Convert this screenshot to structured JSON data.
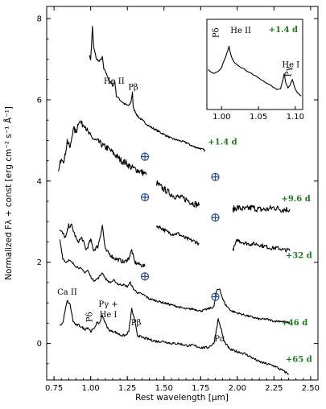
{
  "chart_data": {
    "type": "line",
    "xlabel": "Rest wavelength [μm]",
    "ylabel": "Normalized Fλ + const [erg cm⁻² s⁻¹ Å⁻¹]",
    "xlim": [
      0.7,
      2.55
    ],
    "ylim": [
      -0.9,
      8.3
    ],
    "xticks": [
      "0.75",
      "1.00",
      "1.25",
      "1.50",
      "1.75",
      "2.00",
      "2.25",
      "2.50"
    ],
    "yticks": [
      "0",
      "2",
      "4",
      "6",
      "8"
    ],
    "series_color": "#000000",
    "phase_color": "#1f7a1f",
    "telluric_color": "#2a4d8f",
    "series": [
      {
        "name": "+1.4 d",
        "label_x": 1.8,
        "label_y": 4.9,
        "segments": [
          [
            [
              0.99,
              7.1
            ],
            [
              1.0,
              7.0
            ],
            [
              1.005,
              7.3
            ],
            [
              1.012,
              7.8
            ],
            [
              1.02,
              7.3
            ],
            [
              1.04,
              7.0
            ],
            [
              1.06,
              6.95
            ],
            [
              1.08,
              7.05
            ],
            [
              1.09,
              6.75
            ],
            [
              1.1,
              6.7
            ],
            [
              1.13,
              6.45
            ],
            [
              1.15,
              6.35
            ],
            [
              1.165,
              6.45
            ],
            [
              1.175,
              6.1
            ],
            [
              1.2,
              6.0
            ],
            [
              1.23,
              5.9
            ],
            [
              1.26,
              5.85
            ],
            [
              1.275,
              5.95
            ],
            [
              1.285,
              6.2
            ],
            [
              1.29,
              5.8
            ],
            [
              1.32,
              5.6
            ],
            [
              1.35,
              5.5
            ],
            [
              1.4,
              5.35
            ],
            [
              1.45,
              5.25
            ],
            [
              1.5,
              5.15
            ],
            [
              1.55,
              5.05
            ],
            [
              1.6,
              5.0
            ],
            [
              1.65,
              4.95
            ],
            [
              1.7,
              4.85
            ],
            [
              1.75,
              4.8
            ],
            [
              1.78,
              4.75
            ]
          ]
        ]
      },
      {
        "name": "+9.6 d",
        "label_x": 2.3,
        "label_y": 3.5,
        "segments": [
          [
            [
              0.78,
              4.2
            ],
            [
              0.8,
              4.6
            ],
            [
              0.82,
              4.5
            ],
            [
              0.84,
              5.0
            ],
            [
              0.86,
              4.8
            ],
            [
              0.88,
              5.3
            ],
            [
              0.9,
              5.2
            ],
            [
              0.92,
              5.5
            ],
            [
              0.94,
              5.4
            ],
            [
              0.96,
              5.4
            ],
            [
              0.98,
              5.2
            ],
            [
              1.0,
              5.1
            ],
            [
              1.03,
              5.0
            ],
            [
              1.06,
              4.95
            ],
            [
              1.09,
              4.85
            ],
            [
              1.12,
              4.8
            ],
            [
              1.15,
              4.7
            ],
            [
              1.18,
              4.6
            ],
            [
              1.21,
              4.5
            ],
            [
              1.24,
              4.45
            ],
            [
              1.27,
              4.35
            ],
            [
              1.3,
              4.3
            ],
            [
              1.33,
              4.25
            ],
            [
              1.36,
              4.2
            ],
            [
              1.38,
              4.15
            ]
          ],
          [
            [
              1.45,
              3.95
            ],
            [
              1.48,
              3.85
            ],
            [
              1.52,
              3.75
            ],
            [
              1.56,
              3.65
            ],
            [
              1.6,
              3.6
            ],
            [
              1.65,
              3.55
            ],
            [
              1.7,
              3.45
            ],
            [
              1.74,
              3.4
            ]
          ],
          [
            [
              1.97,
              3.3
            ],
            [
              2.0,
              3.35
            ],
            [
              2.05,
              3.3
            ],
            [
              2.1,
              3.35
            ],
            [
              2.15,
              3.3
            ],
            [
              2.2,
              3.3
            ],
            [
              2.25,
              3.35
            ],
            [
              2.3,
              3.3
            ],
            [
              2.36,
              3.3
            ]
          ]
        ]
      },
      {
        "name": "+32 d",
        "label_x": 2.33,
        "label_y": 2.1,
        "segments": [
          [
            [
              0.79,
              2.8
            ],
            [
              0.81,
              2.7
            ],
            [
              0.83,
              2.6
            ],
            [
              0.85,
              2.9
            ],
            [
              0.87,
              2.9
            ],
            [
              0.89,
              2.7
            ],
            [
              0.91,
              2.5
            ],
            [
              0.94,
              2.6
            ],
            [
              0.97,
              2.3
            ],
            [
              1.0,
              2.55
            ],
            [
              1.02,
              2.3
            ],
            [
              1.05,
              2.4
            ],
            [
              1.08,
              2.9
            ],
            [
              1.1,
              2.3
            ],
            [
              1.13,
              2.2
            ],
            [
              1.16,
              2.1
            ],
            [
              1.2,
              2.05
            ],
            [
              1.23,
              2.0
            ],
            [
              1.26,
              2.1
            ],
            [
              1.28,
              2.3
            ],
            [
              1.3,
              2.0
            ],
            [
              1.33,
              1.95
            ],
            [
              1.37,
              1.9
            ]
          ],
          [
            [
              1.45,
              2.9
            ],
            [
              1.48,
              2.85
            ],
            [
              1.52,
              2.75
            ],
            [
              1.56,
              2.7
            ],
            [
              1.6,
              2.7
            ],
            [
              1.64,
              2.6
            ],
            [
              1.68,
              2.55
            ],
            [
              1.72,
              2.5
            ],
            [
              1.74,
              2.45
            ]
          ],
          [
            [
              1.97,
              2.3
            ],
            [
              2.0,
              2.55
            ],
            [
              2.03,
              2.5
            ],
            [
              2.08,
              2.45
            ],
            [
              2.13,
              2.45
            ],
            [
              2.18,
              2.4
            ],
            [
              2.23,
              2.35
            ],
            [
              2.28,
              2.35
            ],
            [
              2.32,
              2.3
            ],
            [
              2.36,
              2.3
            ]
          ]
        ]
      },
      {
        "name": "+46 d",
        "label_x": 2.3,
        "label_y": 0.45,
        "segments": [
          [
            [
              0.79,
              2.55
            ],
            [
              0.81,
              2.1
            ],
            [
              0.83,
              2.0
            ],
            [
              0.85,
              2.05
            ],
            [
              0.87,
              2.0
            ],
            [
              0.9,
              1.9
            ],
            [
              0.93,
              1.85
            ],
            [
              0.96,
              1.75
            ],
            [
              0.98,
              1.8
            ],
            [
              1.0,
              1.65
            ],
            [
              1.02,
              1.55
            ],
            [
              1.05,
              1.6
            ],
            [
              1.08,
              1.75
            ],
            [
              1.1,
              1.6
            ],
            [
              1.13,
              1.5
            ],
            [
              1.16,
              1.55
            ],
            [
              1.19,
              1.45
            ],
            [
              1.22,
              1.45
            ],
            [
              1.25,
              1.4
            ],
            [
              1.27,
              1.5
            ],
            [
              1.29,
              1.35
            ],
            [
              1.32,
              1.25
            ],
            [
              1.36,
              1.2
            ],
            [
              1.4,
              1.1
            ],
            [
              1.45,
              1.05
            ],
            [
              1.5,
              1.0
            ],
            [
              1.55,
              0.95
            ],
            [
              1.6,
              0.9
            ],
            [
              1.65,
              0.85
            ],
            [
              1.7,
              0.85
            ],
            [
              1.75,
              0.8
            ],
            [
              1.8,
              0.85
            ],
            [
              1.84,
              0.9
            ],
            [
              1.86,
              1.3
            ],
            [
              1.88,
              1.35
            ],
            [
              1.9,
              1.1
            ],
            [
              1.92,
              0.95
            ],
            [
              1.96,
              0.8
            ],
            [
              2.0,
              0.75
            ],
            [
              2.05,
              0.7
            ],
            [
              2.1,
              0.65
            ],
            [
              2.15,
              0.6
            ],
            [
              2.2,
              0.6
            ],
            [
              2.25,
              0.55
            ],
            [
              2.3,
              0.55
            ],
            [
              2.36,
              0.5
            ]
          ]
        ]
      },
      {
        "name": "+65 d",
        "label_x": 2.33,
        "label_y": -0.45,
        "segments": [
          [
            [
              0.79,
              0.45
            ],
            [
              0.81,
              0.5
            ],
            [
              0.82,
              0.7
            ],
            [
              0.84,
              1.05
            ],
            [
              0.86,
              0.95
            ],
            [
              0.88,
              0.55
            ],
            [
              0.9,
              0.45
            ],
            [
              0.92,
              0.45
            ],
            [
              0.94,
              0.4
            ],
            [
              0.96,
              0.35
            ],
            [
              0.98,
              0.4
            ],
            [
              1.0,
              0.3
            ],
            [
              1.02,
              0.35
            ],
            [
              1.04,
              0.5
            ],
            [
              1.06,
              0.5
            ],
            [
              1.08,
              0.7
            ],
            [
              1.1,
              0.5
            ],
            [
              1.12,
              0.35
            ],
            [
              1.14,
              0.3
            ],
            [
              1.16,
              0.3
            ],
            [
              1.18,
              0.25
            ],
            [
              1.21,
              0.2
            ],
            [
              1.24,
              0.2
            ],
            [
              1.26,
              0.3
            ],
            [
              1.28,
              0.85
            ],
            [
              1.3,
              0.55
            ],
            [
              1.32,
              0.2
            ],
            [
              1.35,
              0.15
            ],
            [
              1.4,
              0.1
            ],
            [
              1.45,
              0.05
            ],
            [
              1.5,
              0.05
            ],
            [
              1.55,
              0.0
            ],
            [
              1.6,
              0.0
            ],
            [
              1.65,
              -0.05
            ],
            [
              1.7,
              -0.05
            ],
            [
              1.75,
              -0.1
            ],
            [
              1.8,
              -0.1
            ],
            [
              1.84,
              0.0
            ],
            [
              1.86,
              0.4
            ],
            [
              1.87,
              0.6
            ],
            [
              1.89,
              0.35
            ],
            [
              1.91,
              0.05
            ],
            [
              1.95,
              -0.15
            ],
            [
              2.0,
              -0.2
            ],
            [
              2.05,
              -0.25
            ],
            [
              2.1,
              -0.35
            ],
            [
              2.15,
              -0.45
            ],
            [
              2.2,
              -0.5
            ],
            [
              2.25,
              -0.55
            ],
            [
              2.3,
              -0.65
            ],
            [
              2.35,
              -0.75
            ]
          ]
        ]
      }
    ],
    "telluric_markers": [
      {
        "x": 1.37,
        "y": 4.6
      },
      {
        "x": 1.37,
        "y": 3.6
      },
      {
        "x": 1.37,
        "y": 1.65
      },
      {
        "x": 1.85,
        "y": 4.1
      },
      {
        "x": 1.85,
        "y": 3.1
      },
      {
        "x": 1.85,
        "y": 1.15
      }
    ],
    "line_labels": [
      {
        "text": "He II",
        "x": 1.16,
        "y": 6.4,
        "rotate": false
      },
      {
        "text": "Pβ",
        "x": 1.29,
        "y": 6.25,
        "rotate": false
      },
      {
        "text": "Ca II",
        "x": 0.84,
        "y": 1.2,
        "rotate": false
      },
      {
        "text": "Pδ",
        "x": 1.01,
        "y": 0.65,
        "rotate": true
      },
      {
        "text": "Pγ +",
        "x": 1.12,
        "y": 0.9,
        "rotate": false
      },
      {
        "text": "He I",
        "x": 1.12,
        "y": 0.65,
        "rotate": false
      },
      {
        "text": "Pβ",
        "x": 1.31,
        "y": 0.45,
        "rotate": false
      },
      {
        "text": "Pα",
        "x": 1.88,
        "y": 0.05,
        "rotate": false
      }
    ],
    "inset": {
      "phase": "+1.4 d",
      "xlim": [
        0.98,
        1.11
      ],
      "ylim": [
        0,
        1
      ],
      "xticks": [
        "1.00",
        "1.05",
        "1.10"
      ],
      "points": [
        [
          0.982,
          0.45
        ],
        [
          0.985,
          0.42
        ],
        [
          0.99,
          0.4
        ],
        [
          0.995,
          0.42
        ],
        [
          1.0,
          0.47
        ],
        [
          1.004,
          0.55
        ],
        [
          1.007,
          0.62
        ],
        [
          1.01,
          0.7
        ],
        [
          1.012,
          0.62
        ],
        [
          1.015,
          0.55
        ],
        [
          1.02,
          0.5
        ],
        [
          1.03,
          0.45
        ],
        [
          1.04,
          0.4
        ],
        [
          1.05,
          0.35
        ],
        [
          1.06,
          0.3
        ],
        [
          1.07,
          0.25
        ],
        [
          1.075,
          0.22
        ],
        [
          1.08,
          0.23
        ],
        [
          1.083,
          0.32
        ],
        [
          1.085,
          0.4
        ],
        [
          1.087,
          0.3
        ],
        [
          1.09,
          0.24
        ],
        [
          1.093,
          0.27
        ],
        [
          1.096,
          0.33
        ],
        [
          1.099,
          0.25
        ],
        [
          1.102,
          0.2
        ],
        [
          1.105,
          0.17
        ],
        [
          1.108,
          0.15
        ]
      ],
      "labels": [
        {
          "text": "Pδ",
          "x": 0.996,
          "y": 0.85,
          "rotate": true
        },
        {
          "text": "He II",
          "x": 1.012,
          "y": 0.85,
          "rotate": false
        },
        {
          "text": "He I",
          "x": 1.082,
          "y": 0.47,
          "rotate": false
        },
        {
          "text": "Pγ",
          "x": 1.094,
          "y": 0.42,
          "rotate": true
        }
      ]
    }
  }
}
